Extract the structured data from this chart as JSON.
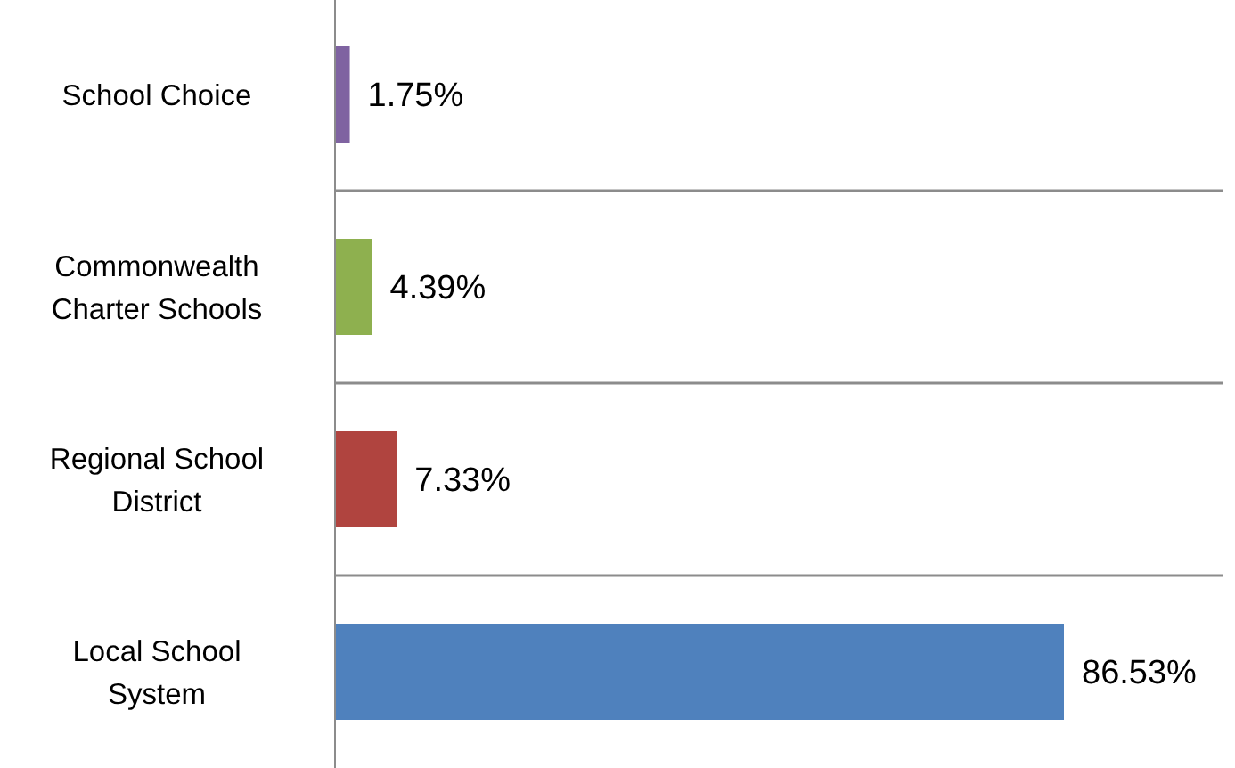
{
  "chart_data": {
    "type": "bar",
    "orientation": "horizontal",
    "categories": [
      "School Choice",
      "Commonwealth Charter Schools",
      "Regional School District",
      "Local School System"
    ],
    "values": [
      1.75,
      4.39,
      7.33,
      86.53
    ],
    "colors": [
      "#7f63a1",
      "#8eb04f",
      "#b0443f",
      "#4f81bd"
    ],
    "value_labels": [
      "1.75%",
      "4.39%",
      "7.33%",
      "86.53%"
    ],
    "grid": "y"
  }
}
